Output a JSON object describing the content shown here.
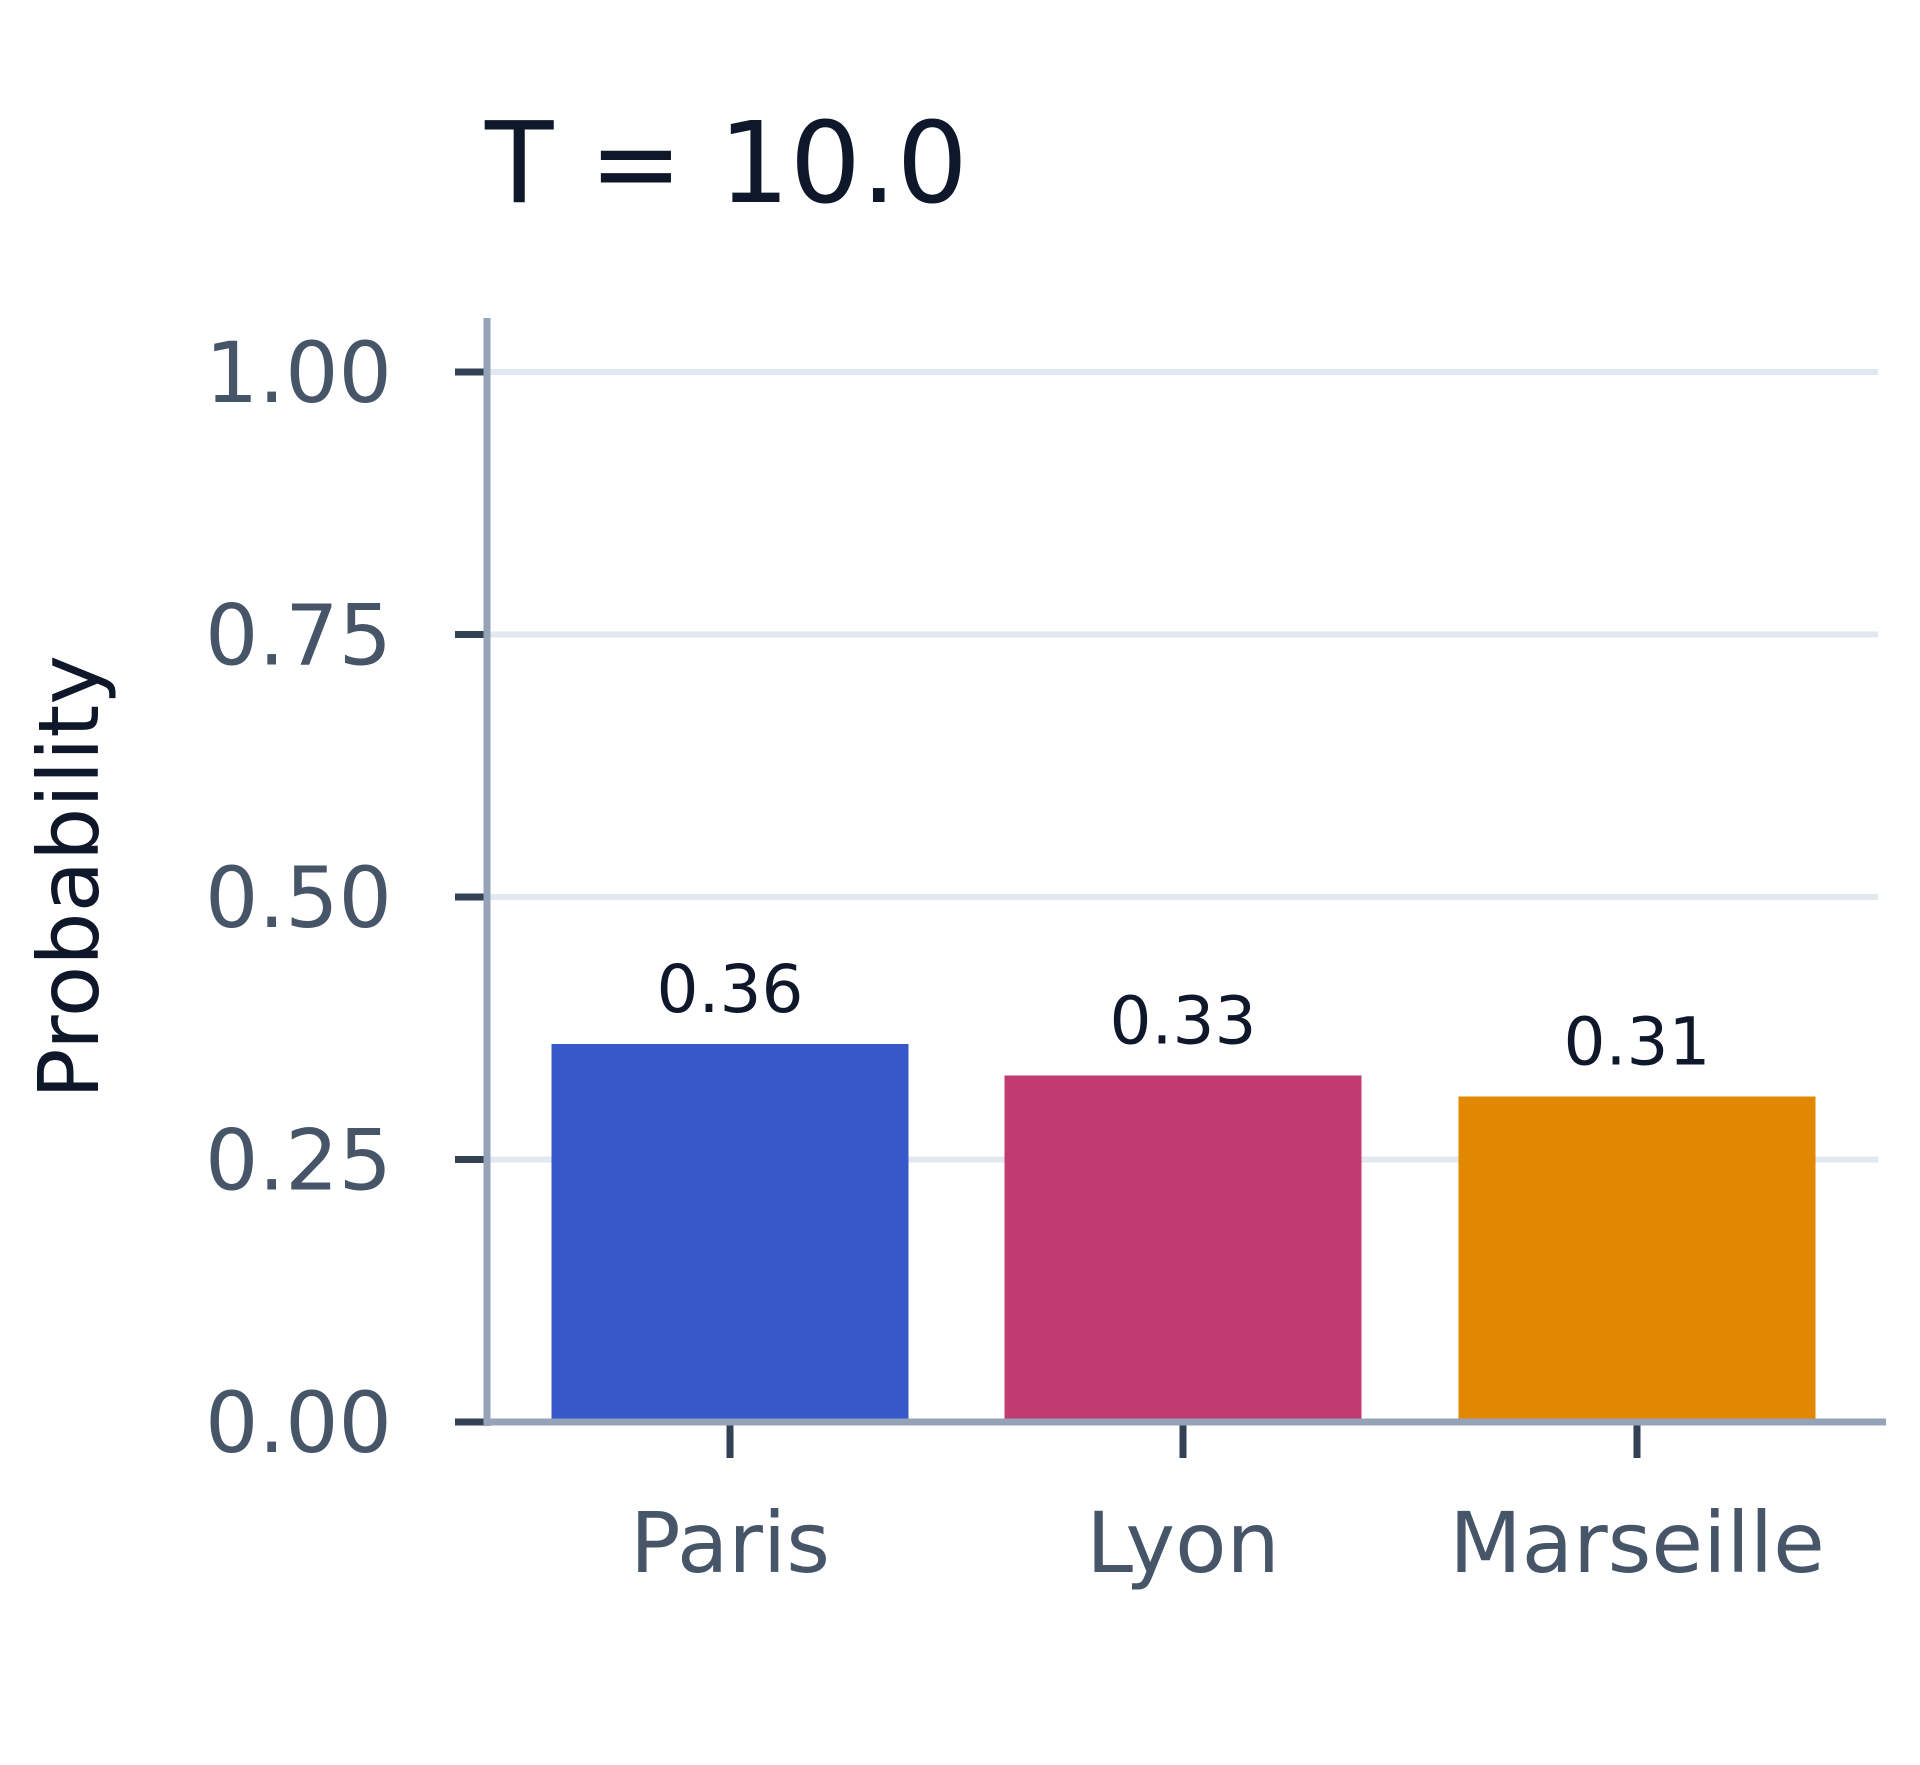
{
  "chart_data": {
    "type": "bar",
    "title": "T = 10.0",
    "xlabel": "",
    "ylabel": "Probability",
    "categories": [
      "Paris",
      "Lyon",
      "Marseille"
    ],
    "values": [
      0.36,
      0.33,
      0.31
    ],
    "data_labels": [
      "0.36",
      "0.33",
      "0.31"
    ],
    "colors": [
      "#3758c8",
      "#c23b70",
      "#e28800"
    ],
    "ylim": [
      0,
      1.0
    ],
    "yticks": [
      0.0,
      0.25,
      0.5,
      0.75,
      1.0
    ],
    "ytick_labels": [
      "0.00",
      "0.25",
      "0.50",
      "0.75",
      "1.00"
    ],
    "grid": true,
    "legend": "none"
  }
}
